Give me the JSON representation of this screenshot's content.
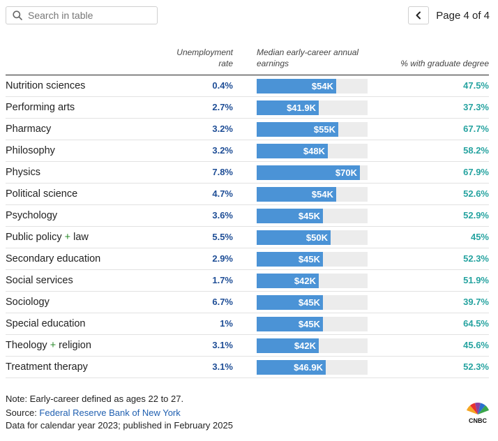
{
  "search": {
    "placeholder": "Search in table"
  },
  "pager": {
    "label": "Page 4 of 4"
  },
  "headers": {
    "unemployment_line1": "Unemployment",
    "unemployment_line2": "rate",
    "earnings_line1": "Median early-career annual",
    "earnings_line2": "earnings",
    "graduate": "% with graduate degree"
  },
  "chart_data": {
    "type": "table",
    "columns": [
      "",
      "Unemployment rate",
      "Median early-career annual earnings",
      "% with graduate degree"
    ],
    "bar_max": 75000,
    "rows": [
      {
        "major": "Nutrition sciences",
        "unemployment": "0.4%",
        "earnings": 54000,
        "earnings_label": "$54K",
        "graduate": "47.5%"
      },
      {
        "major": "Performing arts",
        "unemployment": "2.7%",
        "earnings": 41900,
        "earnings_label": "$41.9K",
        "graduate": "37.3%"
      },
      {
        "major": "Pharmacy",
        "unemployment": "3.2%",
        "earnings": 55000,
        "earnings_label": "$55K",
        "graduate": "67.7%"
      },
      {
        "major": "Philosophy",
        "unemployment": "3.2%",
        "earnings": 48000,
        "earnings_label": "$48K",
        "graduate": "58.2%"
      },
      {
        "major": "Physics",
        "unemployment": "7.8%",
        "earnings": 70000,
        "earnings_label": "$70K",
        "graduate": "67.9%"
      },
      {
        "major": "Political science",
        "unemployment": "4.7%",
        "earnings": 54000,
        "earnings_label": "$54K",
        "graduate": "52.6%"
      },
      {
        "major": "Psychology",
        "unemployment": "3.6%",
        "earnings": 45000,
        "earnings_label": "$45K",
        "graduate": "52.9%"
      },
      {
        "major": "Public policy + law",
        "unemployment": "5.5%",
        "earnings": 50000,
        "earnings_label": "$50K",
        "graduate": "45%"
      },
      {
        "major": "Secondary education",
        "unemployment": "2.9%",
        "earnings": 45000,
        "earnings_label": "$45K",
        "graduate": "52.3%"
      },
      {
        "major": "Social services",
        "unemployment": "1.7%",
        "earnings": 42000,
        "earnings_label": "$42K",
        "graduate": "51.9%"
      },
      {
        "major": "Sociology",
        "unemployment": "6.7%",
        "earnings": 45000,
        "earnings_label": "$45K",
        "graduate": "39.7%"
      },
      {
        "major": "Special education",
        "unemployment": "1%",
        "earnings": 45000,
        "earnings_label": "$45K",
        "graduate": "64.5%"
      },
      {
        "major": "Theology + religion",
        "unemployment": "3.1%",
        "earnings": 42000,
        "earnings_label": "$42K",
        "graduate": "45.6%"
      },
      {
        "major": "Treatment therapy",
        "unemployment": "3.1%",
        "earnings": 46900,
        "earnings_label": "$46.9K",
        "graduate": "52.3%"
      }
    ]
  },
  "footer": {
    "note": "Note: Early-career defined as ages 22 to 27.",
    "source_prefix": "Source: ",
    "source_link": "Federal Reserve Bank of New York",
    "data_note": "Data for calendar year 2023; published in February 2025"
  },
  "logo": {
    "text": "CNBC"
  },
  "colors": {
    "bar": "#4b93d6",
    "bar_track": "#ececec",
    "unemployment_text": "#1f4e96",
    "graduate_text": "#26a3a0",
    "link": "#1f5fb0"
  }
}
